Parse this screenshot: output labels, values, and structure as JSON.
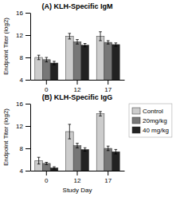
{
  "chart_data": [
    {
      "type": "bar",
      "title": "(A) KLH-Specific IgM",
      "ylabel": "Endpoint Titer (log2)",
      "categories": [
        "0",
        "12",
        "17"
      ],
      "series": [
        {
          "name": "Control",
          "color": "#cccccc",
          "values": [
            8.0,
            11.8,
            11.8
          ],
          "errors": [
            0.4,
            0.5,
            0.8
          ]
        },
        {
          "name": "20mg/kg",
          "color": "#777777",
          "values": [
            7.6,
            10.8,
            10.7
          ],
          "errors": [
            0.4,
            0.4,
            0.3
          ]
        },
        {
          "name": "40 mg/kg",
          "color": "#222222",
          "values": [
            7.0,
            10.2,
            10.3
          ],
          "errors": [
            0.3,
            0.3,
            0.3
          ]
        }
      ],
      "ylim": [
        4,
        16
      ],
      "yticks": [
        4,
        8,
        12,
        16
      ]
    },
    {
      "type": "bar",
      "title": "(B) KLH-Specific IgG",
      "xlabel": "Study Day",
      "ylabel": "Endpoint Titer (log2)",
      "categories": [
        "0",
        "12",
        "17"
      ],
      "series": [
        {
          "name": "Control",
          "color": "#cccccc",
          "values": [
            5.8,
            11.0,
            14.2
          ],
          "errors": [
            0.6,
            1.3,
            0.4
          ]
        },
        {
          "name": "20mg/kg",
          "color": "#777777",
          "values": [
            5.3,
            8.5,
            8.0
          ],
          "errors": [
            0.2,
            0.4,
            0.4
          ]
        },
        {
          "name": "40 mg/kg",
          "color": "#222222",
          "values": [
            4.5,
            7.8,
            7.4
          ],
          "errors": [
            0.2,
            0.3,
            0.4
          ]
        }
      ],
      "ylim": [
        4,
        16
      ],
      "yticks": [
        4,
        8,
        12,
        16
      ],
      "legend": "right"
    }
  ]
}
